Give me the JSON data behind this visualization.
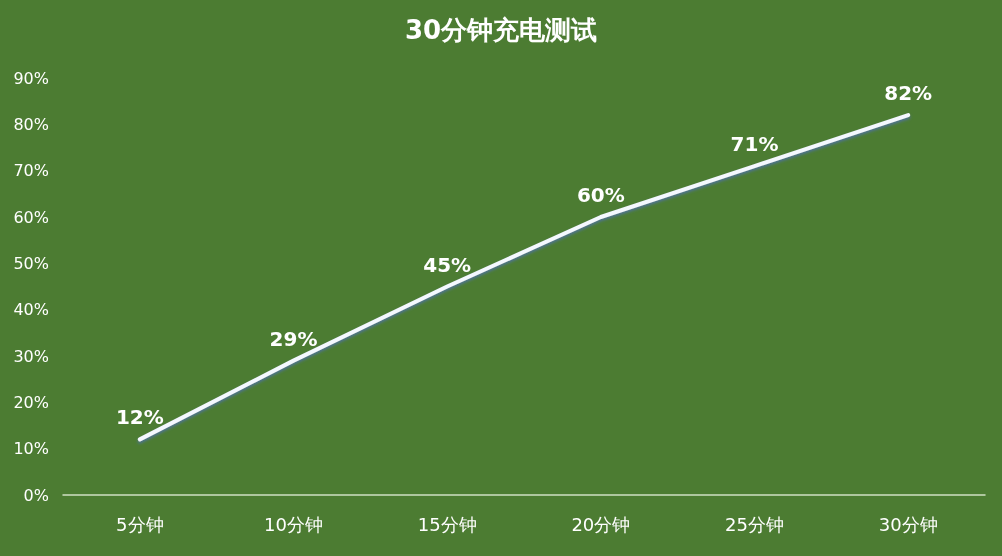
{
  "chart_data": {
    "type": "line",
    "title": "30分钟充电测试",
    "categories": [
      "5分钟",
      "10分钟",
      "15分钟",
      "20分钟",
      "25分钟",
      "30分钟"
    ],
    "series": [
      {
        "color": "#f4f8ff",
        "values": [
          12,
          29,
          45,
          60,
          71,
          82
        ],
        "value_labels": [
          "12%",
          "29%",
          "45%",
          "60%",
          "71%",
          "82%"
        ]
      }
    ],
    "ylim": [
      0,
      90
    ],
    "yticks": [
      {
        "value": 0,
        "label": "0%"
      },
      {
        "value": 10,
        "label": "10%"
      },
      {
        "value": 20,
        "label": "20%"
      },
      {
        "value": 30,
        "label": "30%"
      },
      {
        "value": 40,
        "label": "40%"
      },
      {
        "value": 50,
        "label": "50%"
      },
      {
        "value": 60,
        "label": "60%"
      },
      {
        "value": 70,
        "label": "70%"
      },
      {
        "value": 80,
        "label": "80%"
      },
      {
        "value": 90,
        "label": "90%"
      }
    ],
    "grid": false,
    "marker": "none",
    "line_style": "solid"
  }
}
